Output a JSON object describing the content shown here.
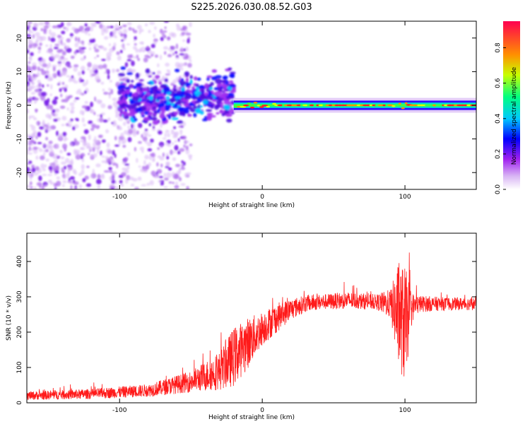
{
  "title": "S225.2026.030.08.52.G03",
  "colors": {
    "snr_line": "#ff1a1a",
    "frame": "#000000",
    "colormap": [
      "#e4ccf8",
      "#c899f0",
      "#a020f0",
      "#5a10e0",
      "#0000ff",
      "#00c8ff",
      "#00ff80",
      "#c8ff00",
      "#ff8000",
      "#ff0040"
    ]
  },
  "chart_data": [
    {
      "type": "heatmap",
      "name": "spectrogram",
      "xlabel": "Height of straight line (km)",
      "ylabel": "Frequency (Hz)",
      "xlim": [
        -165,
        150
      ],
      "ylim": [
        -25,
        25
      ],
      "xticks": [
        "-100",
        "0",
        "100"
      ],
      "xtick_values": [
        -100,
        0,
        100
      ],
      "yticks": [
        "-20",
        "-10",
        "0",
        "10",
        "20"
      ],
      "ytick_values": [
        -20,
        -10,
        0,
        10,
        20
      ],
      "colorbar": {
        "label": "Normalized spectral amplitude",
        "range": [
          0.0,
          0.95
        ],
        "ticks": [
          "0.0",
          "0.2",
          "0.4",
          "0.6",
          "0.8"
        ],
        "tick_values": [
          0.0,
          0.2,
          0.4,
          0.6,
          0.8
        ]
      },
      "regions": [
        {
          "x_range": [
            -165,
            -70
          ],
          "freq_spread_hz": 25,
          "amplitude": 0.1,
          "desc": "scattered noise"
        },
        {
          "x_range": [
            -100,
            -20
          ],
          "freq_center_hz": 2,
          "freq_spread_hz": 7,
          "amplitude": 0.2
        },
        {
          "x_range": [
            -20,
            150
          ],
          "freq_center_hz": 0,
          "freq_spread_hz": 1,
          "amplitude": 0.85
        }
      ]
    },
    {
      "type": "line",
      "name": "snr",
      "xlabel": "Height of straight line (km)",
      "ylabel": "SNR (10 * v/v)",
      "xlim": [
        -165,
        150
      ],
      "ylim": [
        0,
        480
      ],
      "xticks": [
        "-100",
        "0",
        "100"
      ],
      "xtick_values": [
        -100,
        0,
        100
      ],
      "yticks": [
        "0",
        "100",
        "200",
        "300",
        "400"
      ],
      "ytick_values": [
        0,
        100,
        200,
        300,
        400
      ],
      "envelope": {
        "x": [
          -165,
          -120,
          -80,
          -50,
          -30,
          -20,
          -10,
          0,
          10,
          20,
          30,
          40,
          60,
          80,
          90,
          95,
          100,
          105,
          110,
          130,
          150
        ],
        "mean": [
          20,
          25,
          35,
          60,
          90,
          130,
          170,
          210,
          240,
          265,
          280,
          285,
          290,
          285,
          280,
          250,
          220,
          270,
          280,
          280,
          280
        ],
        "noise": [
          10,
          12,
          15,
          25,
          45,
          70,
          60,
          40,
          35,
          25,
          20,
          18,
          20,
          18,
          35,
          120,
          140,
          35,
          20,
          15,
          15
        ]
      }
    }
  ]
}
